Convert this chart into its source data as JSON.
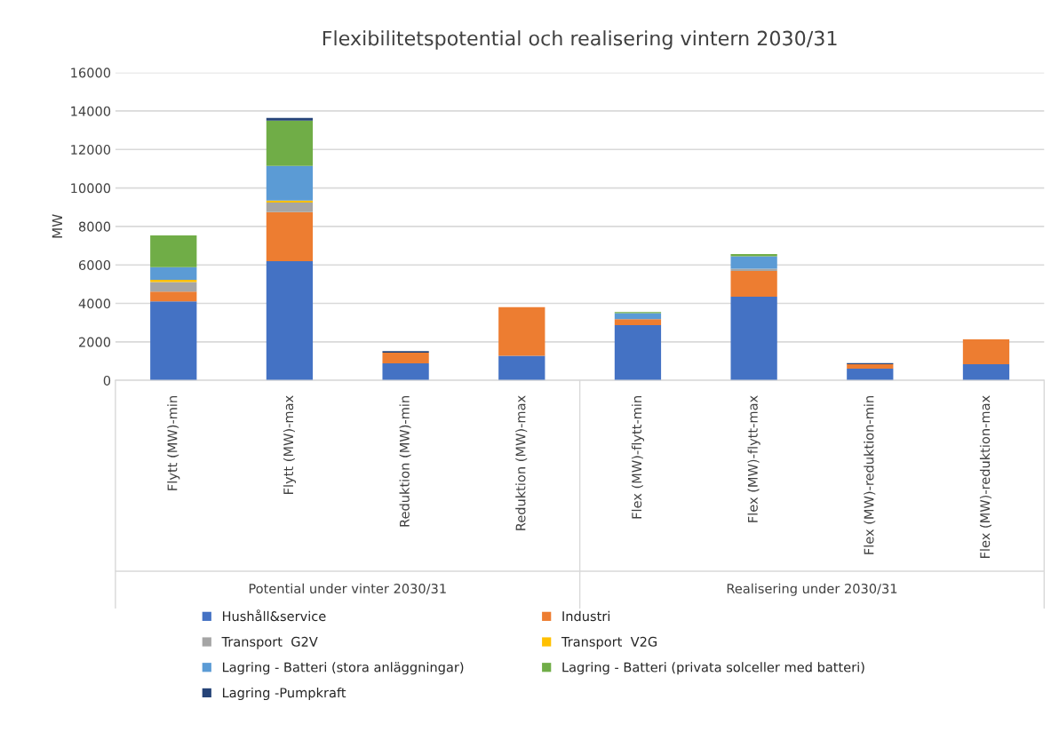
{
  "chart_data": {
    "type": "bar",
    "stacked": true,
    "title": "Flexibilitetspotential och realisering vintern 2030/31",
    "ylabel": "MW",
    "categories": [
      "Flytt (MW)-min",
      "Flytt (MW)-max",
      "Reduktion (MW)-min",
      "Reduktion (MW)-max",
      "Flex (MW)-flytt-min",
      "Flex (MW)-flytt-max",
      "Flex (MW)-reduktion-min",
      "Flex (MW)-reduktion-max"
    ],
    "series": [
      {
        "name": "Hushåll&service",
        "color": "#4472c4",
        "values": [
          4100,
          6190,
          890,
          1280,
          2870,
          4350,
          610,
          840
        ]
      },
      {
        "name": "Industri",
        "color": "#ed7d31",
        "values": [
          510,
          2550,
          550,
          2530,
          310,
          1340,
          230,
          1290
        ]
      },
      {
        "name": "Transport  G2V",
        "color": "#a5a5a5",
        "values": [
          500,
          500,
          0,
          0,
          0,
          110,
          0,
          0
        ]
      },
      {
        "name": "Transport  V2G",
        "color": "#ffc000",
        "values": [
          120,
          110,
          0,
          0,
          0,
          0,
          0,
          0
        ]
      },
      {
        "name": "Lagring - Batteri (stora anläggningar)",
        "color": "#5b9bd5",
        "values": [
          650,
          1800,
          0,
          0,
          310,
          650,
          0,
          0
        ]
      },
      {
        "name": "Lagring - Batteri (privata solceller med batteri)",
        "color": "#70ad47",
        "values": [
          1650,
          2350,
          0,
          0,
          60,
          110,
          0,
          0
        ]
      },
      {
        "name": "Lagring -Pumpkraft",
        "color": "#264478",
        "values": [
          0,
          140,
          80,
          0,
          0,
          0,
          60,
          0
        ]
      }
    ],
    "ylim": [
      0,
      16000
    ],
    "yticks": [
      0,
      2000,
      4000,
      6000,
      8000,
      10000,
      12000,
      14000,
      16000
    ],
    "grid": "y",
    "legend": "bottom",
    "annotations": [
      "Potential under vinter 2030/31",
      "Realisering under 2030/31"
    ]
  }
}
